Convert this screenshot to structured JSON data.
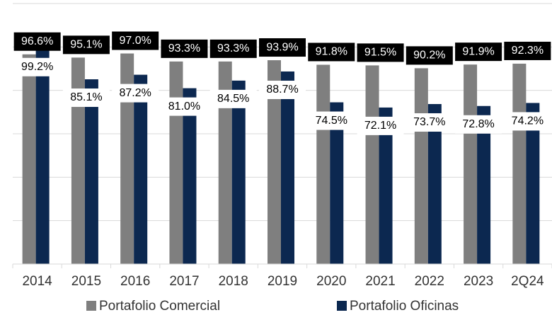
{
  "chart_data": {
    "type": "bar",
    "categories": [
      "2014",
      "2015",
      "2016",
      "2017",
      "2018",
      "2019",
      "2020",
      "2021",
      "2022",
      "2023",
      "2Q24"
    ],
    "series": [
      {
        "name": "Portafolio Comercial",
        "color": "#7f7f7f",
        "values": [
          96.6,
          95.1,
          97.0,
          93.3,
          93.3,
          93.9,
          91.8,
          91.5,
          90.2,
          91.9,
          92.3
        ],
        "value_labels": [
          "96.6%",
          "95.1%",
          "97.0%",
          "93.3%",
          "93.3%",
          "93.9%",
          "91.8%",
          "91.5%",
          "90.2%",
          "91.9%",
          "92.3%"
        ]
      },
      {
        "name": "Portafolio Oficinas",
        "color": "#0c2850",
        "values": [
          99.2,
          85.1,
          87.2,
          81.0,
          84.5,
          88.7,
          74.5,
          72.1,
          73.7,
          72.8,
          74.2
        ],
        "value_labels": [
          "99.2%",
          "85.1%",
          "87.2%",
          "81.0%",
          "84.5%",
          "88.7%",
          "74.5%",
          "72.1%",
          "73.7%",
          "72.8%",
          "74.2%"
        ]
      }
    ],
    "ylim": [
      0,
      120
    ],
    "yticks": [
      0,
      20,
      40,
      60,
      80,
      100,
      120
    ],
    "grid": true
  }
}
